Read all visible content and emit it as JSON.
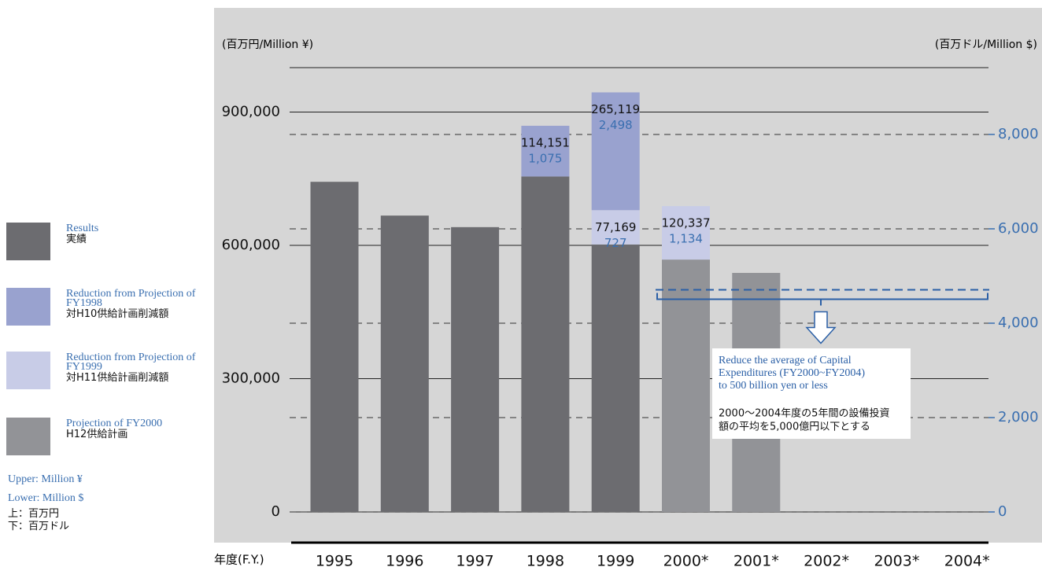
{
  "chart_data": {
    "type": "bar",
    "y_unit_label": "(百万円/Million ¥)",
    "y2_unit_label": "(百万ドル/Million $)",
    "x_label": "年度(F.Y.)",
    "categories": [
      "1995",
      "1996",
      "1997",
      "1998",
      "1999",
      "2000*",
      "2001*",
      "2002*",
      "2003*",
      "2004*"
    ],
    "series": [
      {
        "name": "Results",
        "name_ja": "実績",
        "color": "#6c6c70",
        "values": [
          743000,
          667000,
          641000,
          755000,
          602000,
          null,
          null,
          null,
          null,
          null
        ]
      },
      {
        "name": "Reduction from Projection of FY1998",
        "name_ja": "対H10供給計画削減額",
        "color": "#99a2cf",
        "values": [
          null,
          null,
          null,
          114151,
          265119,
          null,
          null,
          null,
          null,
          null
        ],
        "value_labels": [
          null,
          null,
          null,
          "114,151",
          "265,119",
          null,
          null,
          null,
          null,
          null
        ],
        "usd_labels": [
          null,
          null,
          null,
          "1,075",
          "2,498",
          null,
          null,
          null,
          null,
          null
        ]
      },
      {
        "name": "Reduction from Projection of FY1999",
        "name_ja": "対H11供給計画削減額",
        "color": "#c8cce7",
        "values": [
          null,
          null,
          null,
          null,
          77169,
          120337,
          null,
          null,
          null,
          null
        ],
        "value_labels": [
          null,
          null,
          null,
          null,
          "77,169",
          "120,337",
          null,
          null,
          null,
          null
        ],
        "usd_labels": [
          null,
          null,
          null,
          null,
          "727",
          "1,134",
          null,
          null,
          null,
          null
        ]
      },
      {
        "name": "Projection of FY2000",
        "name_ja": "H12供給計画",
        "color": "#929397",
        "values": [
          null,
          null,
          null,
          null,
          null,
          568000,
          538000,
          null,
          null,
          null
        ]
      }
    ],
    "ylim": [
      0,
      1000000
    ],
    "yticks": [
      0,
      {
        "value": 300000,
        "label": "300,000"
      },
      {
        "value": 600000,
        "label": "600,000"
      },
      {
        "value": 900000,
        "label": "900,000"
      }
    ],
    "y2lim": [
      0,
      9416
    ],
    "y2ticks": [
      0,
      {
        "value": 2000,
        "label": "2,000"
      },
      {
        "value": 4000,
        "label": "4,000"
      },
      {
        "value": 6000,
        "label": "6,000"
      },
      {
        "value": 8000,
        "label": "8,000"
      }
    ],
    "target": 500000,
    "annotation_en": [
      "Reduce the average of Capital",
      "Expenditures (FY2000~FY2004)",
      "to 500 billion yen or less"
    ],
    "annotation_ja": [
      "2000～2004年度の5年間の設備投資",
      "額の平均を5,000億円以下とする"
    ],
    "unit_notes_en": [
      "Upper: Million ¥",
      "Lower: Million $"
    ],
    "unit_notes_ja": [
      "上：百万円",
      "下：百万ドル"
    ]
  }
}
